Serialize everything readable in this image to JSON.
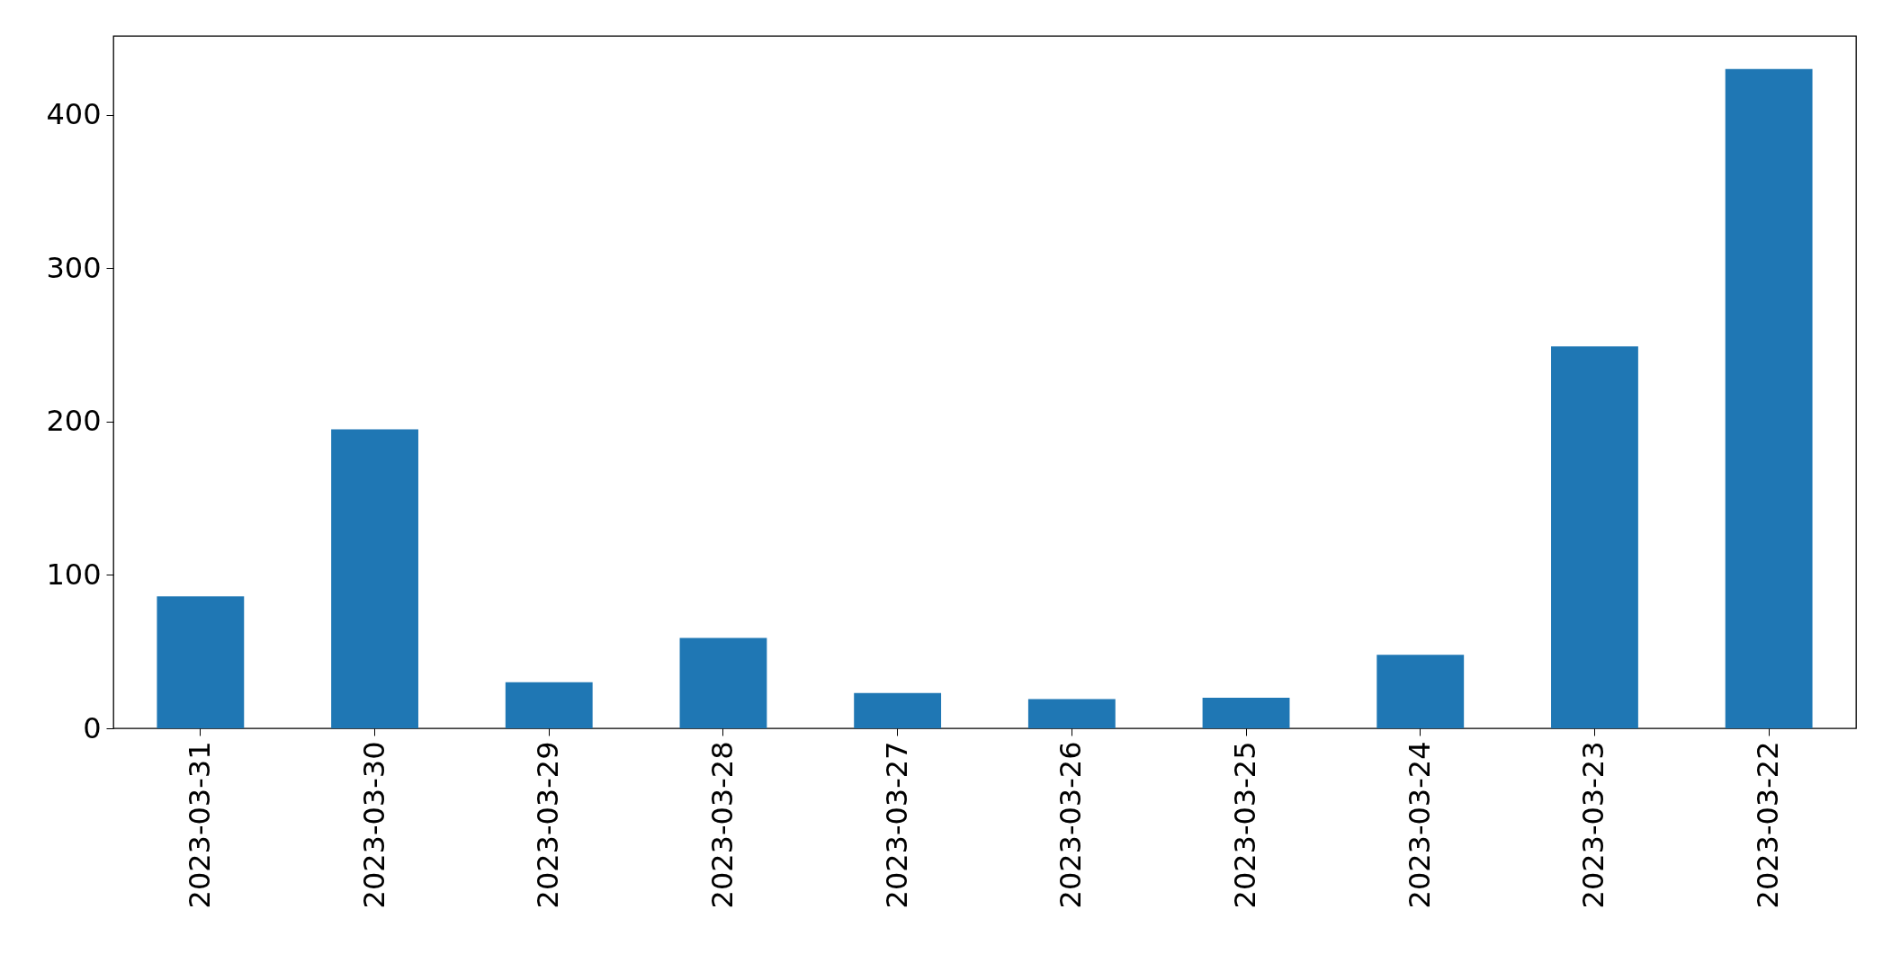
{
  "chart_data": {
    "type": "bar",
    "categories": [
      "2023-03-31",
      "2023-03-30",
      "2023-03-29",
      "2023-03-28",
      "2023-03-27",
      "2023-03-26",
      "2023-03-25",
      "2023-03-24",
      "2023-03-23",
      "2023-03-22"
    ],
    "values": [
      86,
      195,
      30,
      59,
      23,
      19,
      20,
      48,
      249,
      430
    ],
    "color": "#1f77b4",
    "ylim": [
      0,
      451.5
    ],
    "yticks": [
      0,
      100,
      200,
      300,
      400
    ],
    "grid": false
  }
}
